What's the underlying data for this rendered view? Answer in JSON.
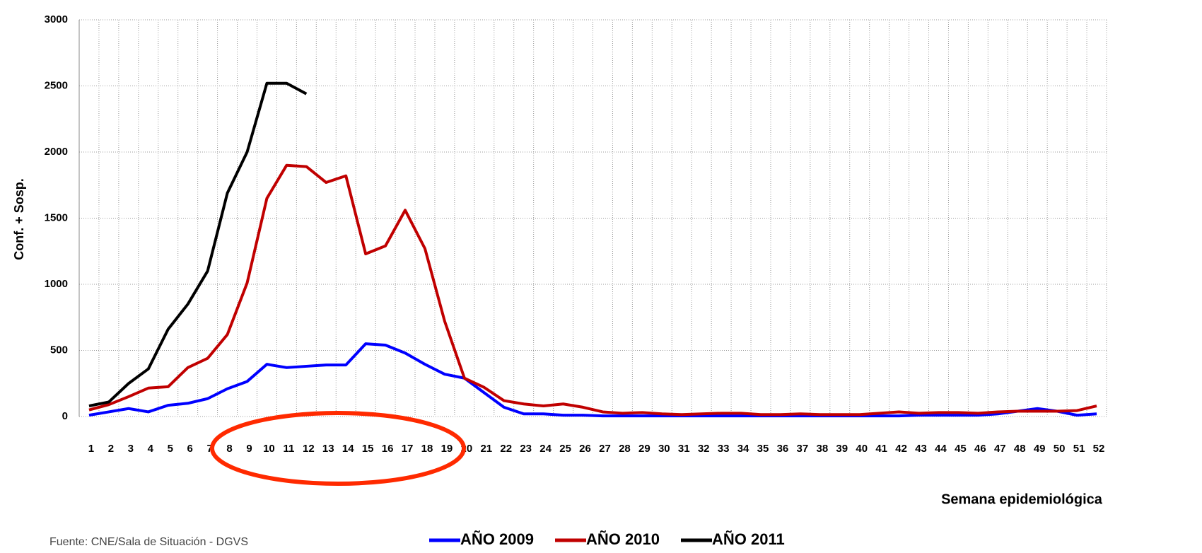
{
  "chart_data": {
    "type": "line",
    "y_label": "Conf. + Sosp.",
    "x_label": "Semana epidemiológica",
    "source": "Fuente: CNE/Sala de Situación - DGVS",
    "categories": [
      "1",
      "2",
      "3",
      "4",
      "5",
      "6",
      "7",
      "8",
      "9",
      "10",
      "11",
      "12",
      "13",
      "14",
      "15",
      "16",
      "17",
      "18",
      "19",
      "20",
      "21",
      "22",
      "23",
      "24",
      "25",
      "26",
      "27",
      "28",
      "29",
      "30",
      "31",
      "32",
      "33",
      "34",
      "35",
      "36",
      "37",
      "38",
      "39",
      "40",
      "41",
      "42",
      "43",
      "44",
      "45",
      "46",
      "47",
      "48",
      "49",
      "50",
      "51",
      "52"
    ],
    "series": [
      {
        "name": "AÑO 2009",
        "color": "#0000ff",
        "values": [
          10,
          35,
          60,
          35,
          85,
          100,
          135,
          210,
          265,
          395,
          370,
          380,
          390,
          390,
          550,
          540,
          480,
          395,
          320,
          290,
          180,
          70,
          20,
          20,
          10,
          10,
          5,
          5,
          5,
          5,
          5,
          5,
          5,
          5,
          5,
          5,
          5,
          5,
          5,
          5,
          5,
          5,
          10,
          10,
          10,
          10,
          20,
          40,
          60,
          40,
          10,
          20
        ]
      },
      {
        "name": "AÑO 2010",
        "color": "#c00000",
        "values": [
          50,
          90,
          150,
          215,
          225,
          370,
          440,
          620,
          1010,
          1650,
          1900,
          1890,
          1770,
          1820,
          1230,
          1290,
          1560,
          1270,
          720,
          290,
          220,
          120,
          95,
          80,
          95,
          70,
          35,
          25,
          30,
          20,
          15,
          20,
          25,
          25,
          15,
          15,
          20,
          15,
          15,
          15,
          25,
          35,
          25,
          30,
          30,
          25,
          35,
          40,
          40,
          40,
          45,
          80
        ]
      },
      {
        "name": "AÑO 2011",
        "color": "#000000",
        "values": [
          80,
          110,
          250,
          360,
          660,
          850,
          1100,
          1690,
          2000,
          2520,
          2520,
          2440,
          null,
          null,
          null,
          null,
          null,
          null,
          null,
          null,
          null,
          null,
          null,
          null,
          null,
          null,
          null,
          null,
          null,
          null,
          null,
          null,
          null,
          null,
          null,
          null,
          null,
          null,
          null,
          null,
          null,
          null,
          null,
          null,
          null,
          null,
          null,
          null,
          null,
          null,
          null,
          null
        ]
      }
    ],
    "ylim": [
      0,
      3000
    ],
    "yticks": [
      0,
      500,
      1000,
      1500,
      2000,
      2500,
      3000
    ],
    "grid": true
  }
}
